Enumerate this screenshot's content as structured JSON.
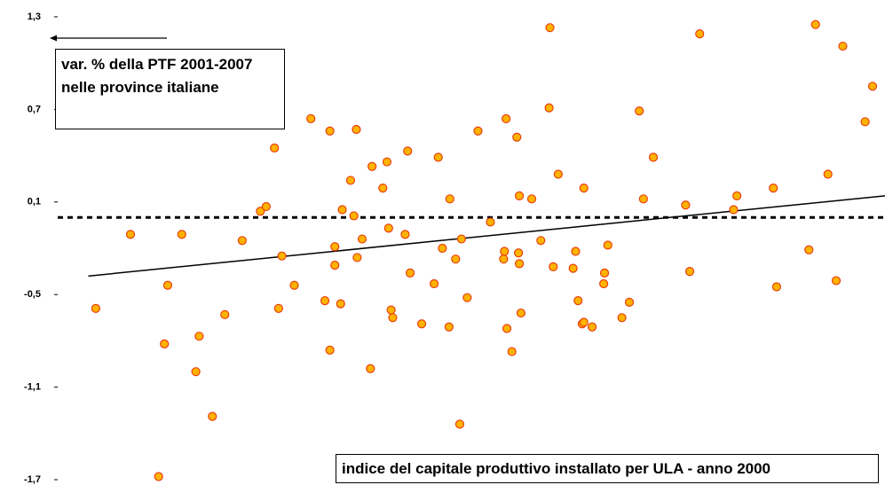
{
  "chart_data": {
    "type": "scatter",
    "color": "#ffb300",
    "edgecolor": "#e8400c",
    "xlim": [
      0,
      100
    ],
    "ylim": [
      -1.7,
      1.3
    ],
    "yticks": [
      {
        "value": 1.3,
        "label": "1,3"
      },
      {
        "value": 0.7,
        "label": "0,7"
      },
      {
        "value": 0.1,
        "label": "0,1"
      },
      {
        "value": -0.5,
        "label": "-0,5"
      },
      {
        "value": -1.1,
        "label": "-1,1"
      },
      {
        "value": -1.7,
        "label": "-1,7"
      }
    ],
    "x": [
      4.6,
      8.8,
      12.2,
      12.9,
      13.3,
      15.0,
      16.7,
      17.1,
      18.7,
      20.2,
      22.3,
      24.5,
      25.2,
      26.2,
      26.7,
      27.1,
      28.6,
      30.6,
      32.3,
      32.9,
      32.9,
      33.5,
      33.5,
      34.2,
      34.4,
      35.4,
      35.8,
      36.1,
      36.2,
      36.8,
      37.8,
      38.0,
      39.3,
      39.8,
      40.0,
      40.3,
      40.5,
      42.0,
      42.3,
      42.6,
      44.0,
      45.5,
      46.0,
      46.5,
      47.3,
      47.4,
      48.1,
      48.6,
      48.8,
      49.5,
      50.8,
      52.3,
      53.9,
      54.0,
      54.2,
      54.3,
      54.9,
      55.5,
      55.7,
      55.8,
      55.8,
      56.0,
      57.3,
      58.4,
      59.4,
      59.5,
      59.9,
      60.5,
      62.3,
      62.6,
      62.9,
      63.4,
      63.6,
      63.6,
      64.6,
      66.0,
      66.1,
      66.5,
      68.2,
      69.1,
      70.3,
      70.8,
      72.0,
      75.9,
      76.4,
      77.6,
      81.7,
      82.1,
      86.5,
      86.9,
      90.8,
      91.6,
      93.1,
      94.1,
      94.9,
      97.6,
      98.5
    ],
    "values": [
      -0.59,
      -0.11,
      -1.68,
      -0.82,
      -0.44,
      -0.11,
      -1.0,
      -0.77,
      -1.29,
      -0.63,
      -0.15,
      0.04,
      0.07,
      0.45,
      -0.59,
      -0.25,
      -0.44,
      0.64,
      -0.54,
      -0.86,
      0.56,
      -0.31,
      -0.19,
      -0.56,
      0.05,
      0.24,
      0.01,
      0.57,
      -0.26,
      -0.14,
      -0.98,
      0.33,
      0.19,
      0.36,
      -0.07,
      -0.6,
      -0.65,
      -0.11,
      0.43,
      -0.36,
      -0.69,
      -0.43,
      0.39,
      -0.2,
      -0.71,
      0.12,
      -0.27,
      -1.34,
      -0.14,
      -0.52,
      0.56,
      -0.03,
      -0.27,
      -0.22,
      0.64,
      -0.72,
      -0.87,
      0.52,
      -0.23,
      -0.3,
      0.14,
      -0.62,
      0.12,
      -0.15,
      0.71,
      1.23,
      -0.32,
      0.28,
      -0.33,
      -0.22,
      -0.54,
      -0.69,
      0.19,
      -0.68,
      -0.71,
      -0.43,
      -0.36,
      -0.18,
      -0.65,
      -0.55,
      0.69,
      0.12,
      0.39,
      0.08,
      -0.35,
      1.19,
      0.05,
      0.14,
      0.19,
      -0.45,
      -0.21,
      1.25,
      0.28,
      -0.41,
      1.11,
      0.62,
      0.85
    ],
    "trend_line": {
      "x": [
        3.7,
        100
      ],
      "values": [
        -0.38,
        0.14
      ]
    },
    "reference_line": 0,
    "y_annotation": "var. % della PTF 2001-2007 nelle province italiane",
    "x_annotation": "indice del capitale produttivo installato per ULA - anno 2000"
  }
}
